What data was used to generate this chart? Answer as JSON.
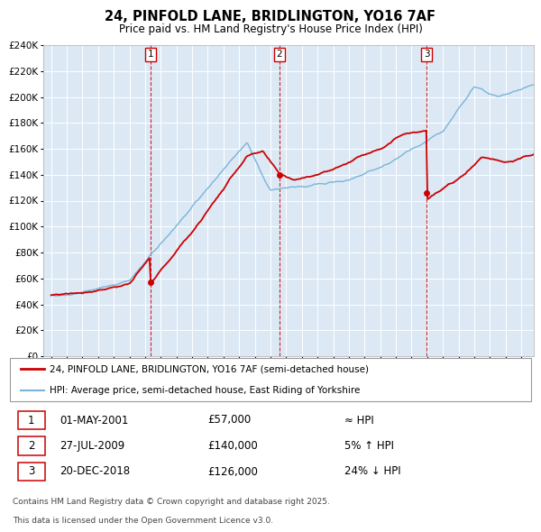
{
  "title_line1": "24, PINFOLD LANE, BRIDLINGTON, YO16 7AF",
  "title_line2": "Price paid vs. HM Land Registry's House Price Index (HPI)",
  "plot_bg_color": "#dce9f5",
  "legend_line1": "24, PINFOLD LANE, BRIDLINGTON, YO16 7AF (semi-detached house)",
  "legend_line2": "HPI: Average price, semi-detached house, East Riding of Yorkshire",
  "red_color": "#cc0000",
  "blue_color": "#7ab4d8",
  "transactions": [
    {
      "num": 1,
      "date": "01-MAY-2001",
      "year": 2001.33,
      "price": 57000,
      "label": "≈ HPI"
    },
    {
      "num": 2,
      "date": "27-JUL-2009",
      "year": 2009.56,
      "price": 140000,
      "label": "5% ↑ HPI"
    },
    {
      "num": 3,
      "date": "20-DEC-2018",
      "year": 2018.96,
      "price": 126000,
      "label": "24% ↓ HPI"
    }
  ],
  "footer_line1": "Contains HM Land Registry data © Crown copyright and database right 2025.",
  "footer_line2": "This data is licensed under the Open Government Licence v3.0.",
  "ylim_max": 240000,
  "ylim_min": 0,
  "xlim_min": 1994.5,
  "xlim_max": 2025.8
}
